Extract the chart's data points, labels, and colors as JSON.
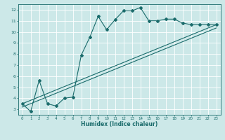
{
  "xlabel": "Humidex (Indice chaleur)",
  "ylabel": "",
  "bg_color": "#cce8e8",
  "grid_color": "#ffffff",
  "line_color": "#1a6b6b",
  "xlim": [
    -0.5,
    23.5
  ],
  "ylim": [
    2.5,
    12.5
  ],
  "xticks": [
    0,
    1,
    2,
    3,
    4,
    5,
    6,
    7,
    8,
    9,
    10,
    11,
    12,
    13,
    14,
    15,
    16,
    17,
    18,
    19,
    20,
    21,
    22,
    23
  ],
  "yticks": [
    3,
    4,
    5,
    6,
    7,
    8,
    9,
    10,
    11,
    12
  ],
  "main_x": [
    0,
    1,
    2,
    3,
    4,
    5,
    6,
    7,
    8,
    9,
    10,
    11,
    12,
    13,
    14,
    15,
    16,
    17,
    18,
    19,
    20,
    21,
    22,
    23
  ],
  "main_y": [
    3.5,
    2.8,
    5.6,
    3.5,
    3.3,
    4.0,
    4.1,
    7.9,
    9.5,
    11.4,
    10.2,
    11.1,
    11.9,
    11.9,
    12.2,
    11.0,
    11.0,
    11.15,
    11.15,
    10.8,
    10.65,
    10.65,
    10.65,
    10.65
  ],
  "line1_x": [
    0,
    23
  ],
  "line1_y": [
    3.5,
    10.65
  ],
  "line2_x": [
    0,
    23
  ],
  "line2_y": [
    3.2,
    10.35
  ]
}
